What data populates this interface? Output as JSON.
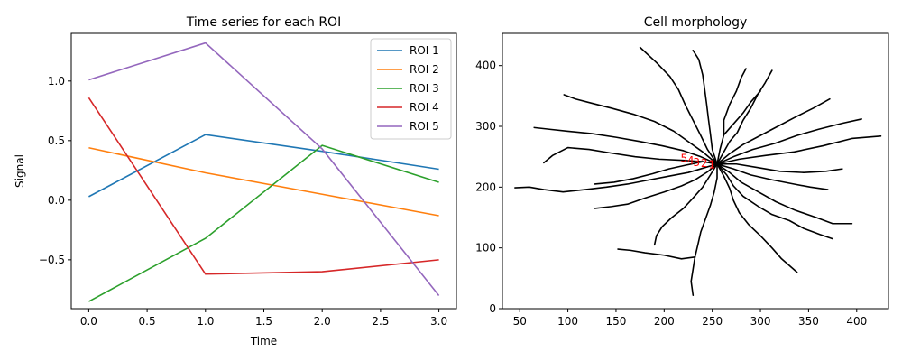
{
  "chart_data": [
    {
      "type": "line",
      "title": "Time series for each ROI",
      "xlabel": "Time",
      "ylabel": "Signal",
      "xlim": [
        -0.15,
        3.15
      ],
      "ylim": [
        -0.91,
        1.4
      ],
      "x_ticks": [
        0.0,
        0.5,
        1.0,
        1.5,
        2.0,
        2.5,
        3.0
      ],
      "x_tick_labels": [
        "0.0",
        "0.5",
        "1.0",
        "1.5",
        "2.0",
        "2.5",
        "3.0"
      ],
      "y_ticks": [
        -0.5,
        0.0,
        0.5,
        1.0
      ],
      "y_tick_labels": [
        "−0.5",
        "0.0",
        "0.5",
        "1.0"
      ],
      "grid": false,
      "legend_position": "top-right",
      "x": [
        0,
        1,
        2,
        3
      ],
      "series": [
        {
          "name": "ROI 1",
          "color": "#1f77b4",
          "values": [
            0.03,
            0.55,
            0.41,
            0.26
          ]
        },
        {
          "name": "ROI 2",
          "color": "#ff7f0e",
          "values": [
            0.44,
            0.23,
            0.05,
            -0.13
          ]
        },
        {
          "name": "ROI 3",
          "color": "#2ca02c",
          "values": [
            -0.85,
            -0.32,
            0.46,
            0.15
          ]
        },
        {
          "name": "ROI 4",
          "color": "#d62728",
          "values": [
            0.86,
            -0.62,
            -0.6,
            -0.5
          ]
        },
        {
          "name": "ROI 5",
          "color": "#9467bd",
          "values": [
            1.01,
            1.32,
            0.43,
            -0.8
          ]
        }
      ]
    },
    {
      "type": "line",
      "title": "Cell morphology",
      "xlim": [
        32,
        433
      ],
      "ylim": [
        0,
        453
      ],
      "x_ticks": [
        50,
        100,
        150,
        200,
        250,
        300,
        350,
        400
      ],
      "x_tick_labels": [
        "50",
        "100",
        "150",
        "200",
        "250",
        "300",
        "350",
        "400"
      ],
      "y_ticks": [
        0,
        100,
        200,
        300,
        400
      ],
      "y_tick_labels": [
        "0",
        "100",
        "200",
        "300",
        "400"
      ],
      "grid": false,
      "trace_color": "#000000",
      "label_color": "#ff0000",
      "center": [
        255,
        238
      ],
      "branches": [
        [
          [
            255,
            238
          ],
          [
            262,
            258
          ],
          [
            268,
            275
          ],
          [
            276,
            290
          ],
          [
            282,
            310
          ],
          [
            290,
            330
          ],
          [
            297,
            352
          ],
          [
            305,
            372
          ],
          [
            312,
            392
          ]
        ],
        [
          [
            255,
            238
          ],
          [
            268,
            255
          ],
          [
            282,
            270
          ],
          [
            300,
            285
          ],
          [
            318,
            300
          ],
          [
            336,
            315
          ],
          [
            355,
            330
          ],
          [
            372,
            345
          ]
        ],
        [
          [
            255,
            238
          ],
          [
            272,
            250
          ],
          [
            292,
            262
          ],
          [
            315,
            272
          ],
          [
            338,
            285
          ],
          [
            360,
            295
          ],
          [
            385,
            305
          ],
          [
            405,
            312
          ]
        ],
        [
          [
            255,
            238
          ],
          [
            278,
            246
          ],
          [
            305,
            252
          ],
          [
            335,
            258
          ],
          [
            365,
            268
          ],
          [
            395,
            280
          ],
          [
            425,
            284
          ]
        ],
        [
          [
            255,
            238
          ],
          [
            275,
            238
          ],
          [
            298,
            232
          ],
          [
            320,
            226
          ],
          [
            345,
            224
          ],
          [
            368,
            226
          ],
          [
            385,
            230
          ]
        ],
        [
          [
            255,
            238
          ],
          [
            272,
            230
          ],
          [
            290,
            220
          ],
          [
            312,
            212
          ],
          [
            335,
            205
          ],
          [
            352,
            200
          ],
          [
            370,
            196
          ]
        ],
        [
          [
            255,
            238
          ],
          [
            268,
            224
          ],
          [
            280,
            208
          ],
          [
            298,
            192
          ],
          [
            316,
            176
          ],
          [
            336,
            162
          ],
          [
            358,
            150
          ],
          [
            375,
            140
          ],
          [
            395,
            140
          ]
        ],
        [
          [
            255,
            238
          ],
          [
            265,
            220
          ],
          [
            272,
            202
          ],
          [
            282,
            185
          ],
          [
            298,
            168
          ],
          [
            312,
            155
          ],
          [
            330,
            145
          ],
          [
            345,
            132
          ],
          [
            362,
            122
          ],
          [
            375,
            115
          ]
        ],
        [
          [
            255,
            238
          ],
          [
            262,
            218
          ],
          [
            268,
            198
          ],
          [
            272,
            178
          ],
          [
            278,
            158
          ],
          [
            288,
            138
          ],
          [
            300,
            120
          ],
          [
            312,
            100
          ],
          [
            322,
            82
          ],
          [
            338,
            60
          ]
        ],
        [
          [
            255,
            238
          ],
          [
            255,
            215
          ],
          [
            252,
            192
          ],
          [
            248,
            170
          ],
          [
            243,
            148
          ],
          [
            238,
            126
          ],
          [
            235,
            105
          ],
          [
            232,
            85
          ],
          [
            230,
            65
          ],
          [
            228,
            45
          ],
          [
            230,
            22
          ]
        ],
        [
          [
            255,
            238
          ],
          [
            248,
            220
          ],
          [
            240,
            200
          ],
          [
            230,
            182
          ],
          [
            220,
            165
          ],
          [
            208,
            150
          ],
          [
            198,
            135
          ],
          [
            192,
            120
          ],
          [
            190,
            105
          ]
        ],
        [
          [
            255,
            238
          ],
          [
            245,
            225
          ],
          [
            232,
            212
          ],
          [
            218,
            202
          ],
          [
            200,
            192
          ],
          [
            180,
            182
          ],
          [
            162,
            172
          ],
          [
            145,
            168
          ],
          [
            128,
            165
          ]
        ],
        [
          [
            255,
            238
          ],
          [
            242,
            232
          ],
          [
            225,
            224
          ],
          [
            205,
            218
          ],
          [
            185,
            212
          ],
          [
            162,
            205
          ],
          [
            140,
            200
          ],
          [
            118,
            196
          ],
          [
            95,
            192
          ],
          [
            75,
            196
          ],
          [
            60,
            200
          ],
          [
            45,
            199
          ]
        ],
        [
          [
            255,
            238
          ],
          [
            240,
            242
          ],
          [
            220,
            244
          ],
          [
            195,
            246
          ],
          [
            170,
            250
          ],
          [
            145,
            256
          ],
          [
            122,
            262
          ],
          [
            100,
            265
          ],
          [
            84,
            252
          ],
          [
            75,
            240
          ]
        ],
        [
          [
            255,
            238
          ],
          [
            238,
            250
          ],
          [
            220,
            260
          ],
          [
            198,
            268
          ],
          [
            175,
            275
          ],
          [
            150,
            282
          ],
          [
            125,
            288
          ],
          [
            100,
            292
          ],
          [
            82,
            295
          ],
          [
            65,
            298
          ]
        ],
        [
          [
            255,
            238
          ],
          [
            240,
            258
          ],
          [
            225,
            275
          ],
          [
            210,
            292
          ],
          [
            190,
            308
          ],
          [
            168,
            320
          ],
          [
            145,
            330
          ],
          [
            125,
            338
          ],
          [
            108,
            345
          ],
          [
            96,
            352
          ]
        ],
        [
          [
            255,
            238
          ],
          [
            245,
            262
          ],
          [
            238,
            285
          ],
          [
            230,
            310
          ],
          [
            222,
            335
          ],
          [
            215,
            360
          ],
          [
            206,
            382
          ],
          [
            192,
            405
          ],
          [
            175,
            430
          ]
        ],
        [
          [
            255,
            238
          ],
          [
            250,
            262
          ],
          [
            248,
            288
          ],
          [
            246,
            312
          ],
          [
            244,
            338
          ],
          [
            242,
            362
          ],
          [
            240,
            385
          ],
          [
            236,
            410
          ],
          [
            230,
            425
          ]
        ],
        [
          [
            255,
            238
          ],
          [
            258,
            262
          ],
          [
            262,
            286
          ],
          [
            262,
            310
          ],
          [
            268,
            336
          ],
          [
            275,
            358
          ],
          [
            280,
            380
          ],
          [
            285,
            395
          ]
        ],
        [
          [
            240,
            242
          ],
          [
            222,
            236
          ],
          [
            205,
            230
          ],
          [
            188,
            222
          ],
          [
            168,
            214
          ],
          [
            148,
            208
          ],
          [
            128,
            205
          ]
        ],
        [
          [
            262,
            286
          ],
          [
            272,
            304
          ],
          [
            282,
            322
          ],
          [
            290,
            340
          ],
          [
            300,
            358
          ]
        ],
        [
          [
            232,
            85
          ],
          [
            218,
            82
          ],
          [
            200,
            88
          ],
          [
            180,
            92
          ],
          [
            165,
            96
          ],
          [
            152,
            98
          ]
        ]
      ],
      "roi_labels": [
        {
          "text": "1",
          "x": 246,
          "y": 231
        },
        {
          "text": "2",
          "x": 238,
          "y": 233
        },
        {
          "text": "3",
          "x": 230,
          "y": 235
        },
        {
          "text": "4",
          "x": 224,
          "y": 238
        },
        {
          "text": "5",
          "x": 217,
          "y": 241
        }
      ]
    }
  ]
}
